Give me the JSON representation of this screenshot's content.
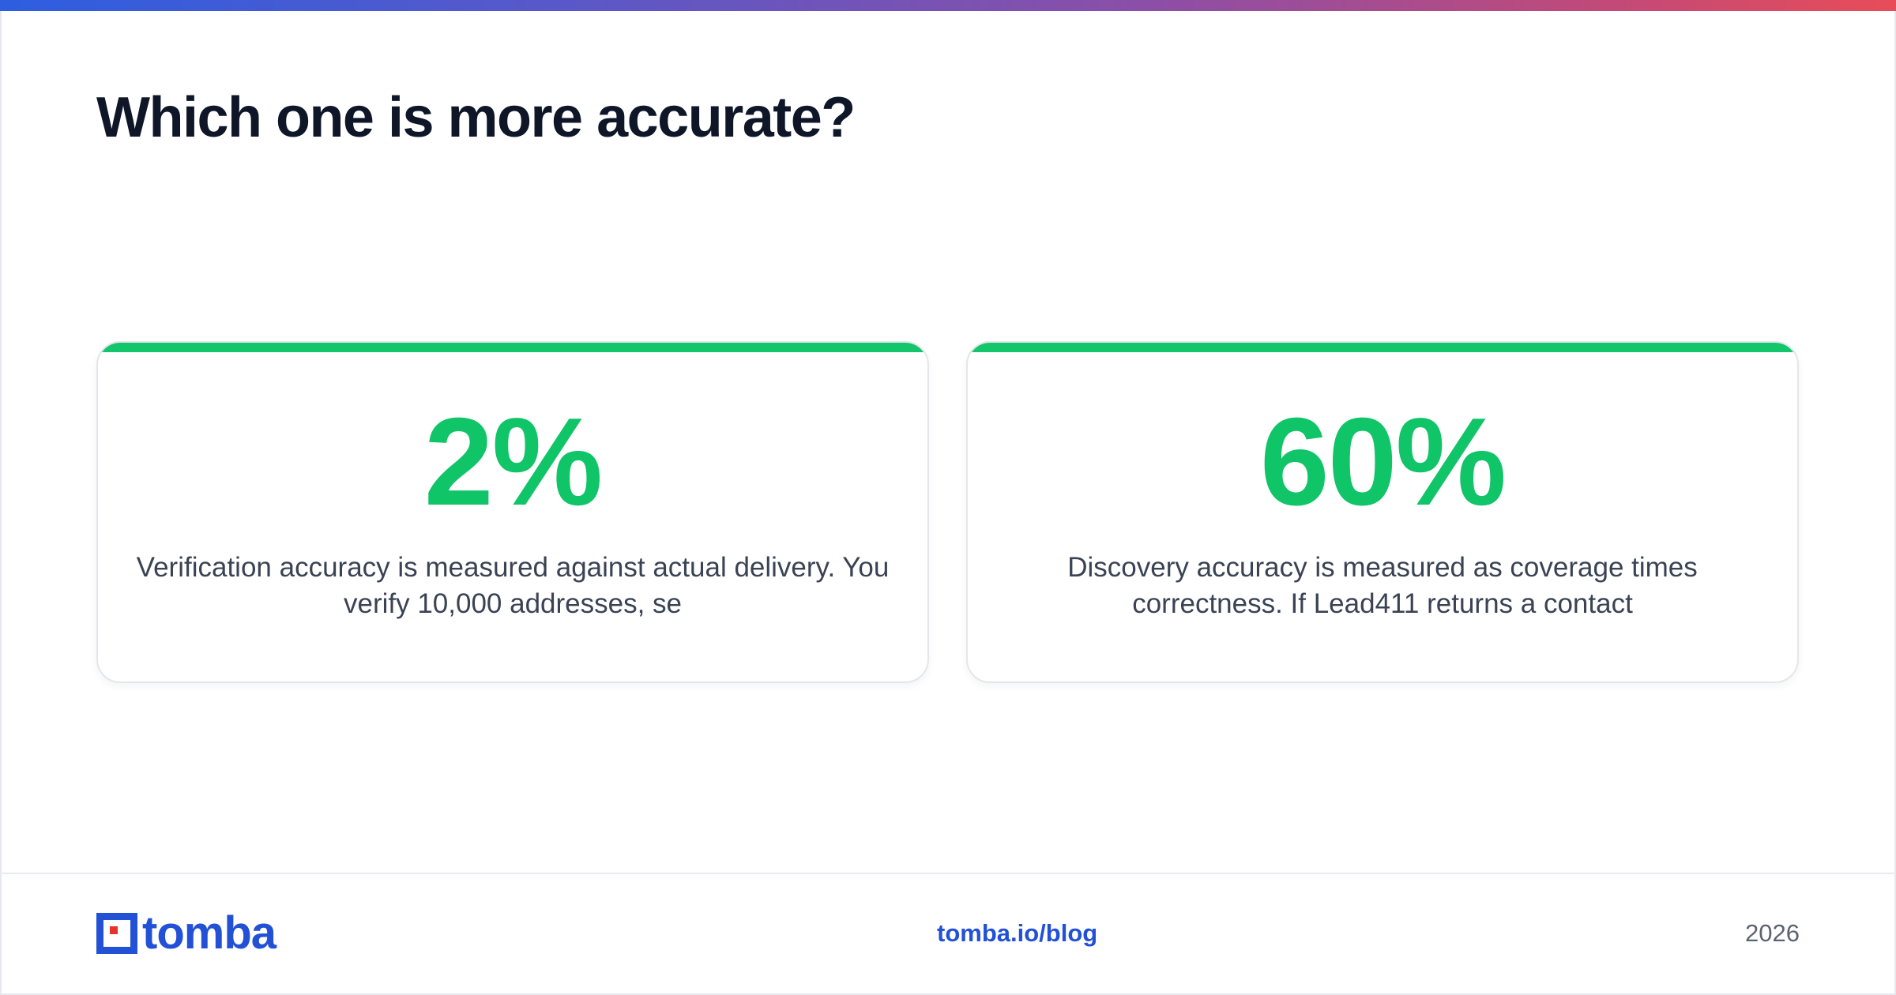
{
  "header": {
    "title": "Which one is more accurate?"
  },
  "cards": [
    {
      "stat": "2%",
      "description": "Verification accuracy is measured against actual delivery. You verify 10,000 addresses, se"
    },
    {
      "stat": "60%",
      "description": "Discovery accuracy is measured as coverage times correctness. If Lead411 returns a contact"
    }
  ],
  "footer": {
    "logo_text": "tomba",
    "logo_icon": "tomba-logo-icon",
    "link": "tomba.io/blog",
    "year": "2026"
  },
  "colors": {
    "accent_green": "#10c468",
    "brand_blue": "#2251d6",
    "brand_red": "#e8322a",
    "title": "#0e1628"
  }
}
